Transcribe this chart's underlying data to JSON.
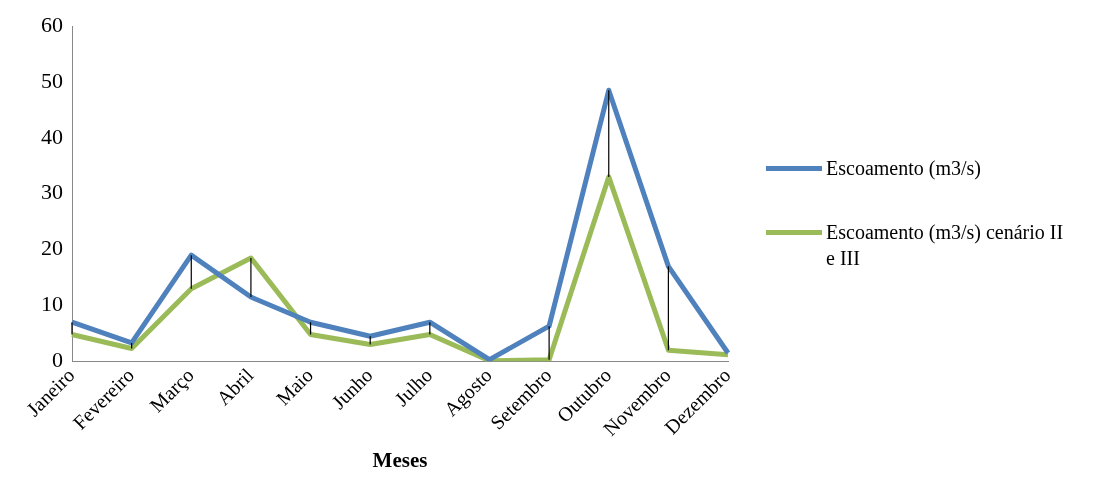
{
  "chart_data": {
    "type": "line",
    "xlabel": "Meses",
    "categories": [
      "Janeiro",
      "Fevereiro",
      "Março",
      "Abril",
      "Maio",
      "Junho",
      "Julho",
      "Agosto",
      "Setembro",
      "Outubro",
      "Novembro",
      "Dezembro"
    ],
    "series": [
      {
        "name": "Escoamento (m3/s)",
        "color": "#4f81bd",
        "values": [
          7,
          3.3,
          19,
          11.5,
          7,
          4.5,
          7,
          0.3,
          6.3,
          48.5,
          17,
          1.5
        ],
        "errors": [
          [
            4.8,
            7
          ],
          [
            2.3,
            3.3
          ],
          [
            13,
            19
          ],
          [
            11.5,
            18.5
          ],
          [
            4.8,
            7
          ],
          [
            3,
            4.5
          ],
          [
            4.8,
            7
          ],
          null,
          [
            0.3,
            6.3
          ],
          [
            33,
            48.5
          ],
          [
            2,
            17
          ],
          null
        ]
      },
      {
        "name": "Escoamento (m3/s) cenário II e III",
        "color": "#9bbb59",
        "values": [
          4.8,
          2.3,
          13,
          18.5,
          4.8,
          3,
          4.8,
          0.1,
          0.3,
          33,
          2,
          1.2
        ]
      }
    ],
    "ylim": [
      0,
      60
    ],
    "yticks": [
      0,
      10,
      20,
      30,
      40,
      50,
      60
    ],
    "grid": false,
    "legend": "right",
    "marker": "none",
    "line_style": "solid"
  }
}
